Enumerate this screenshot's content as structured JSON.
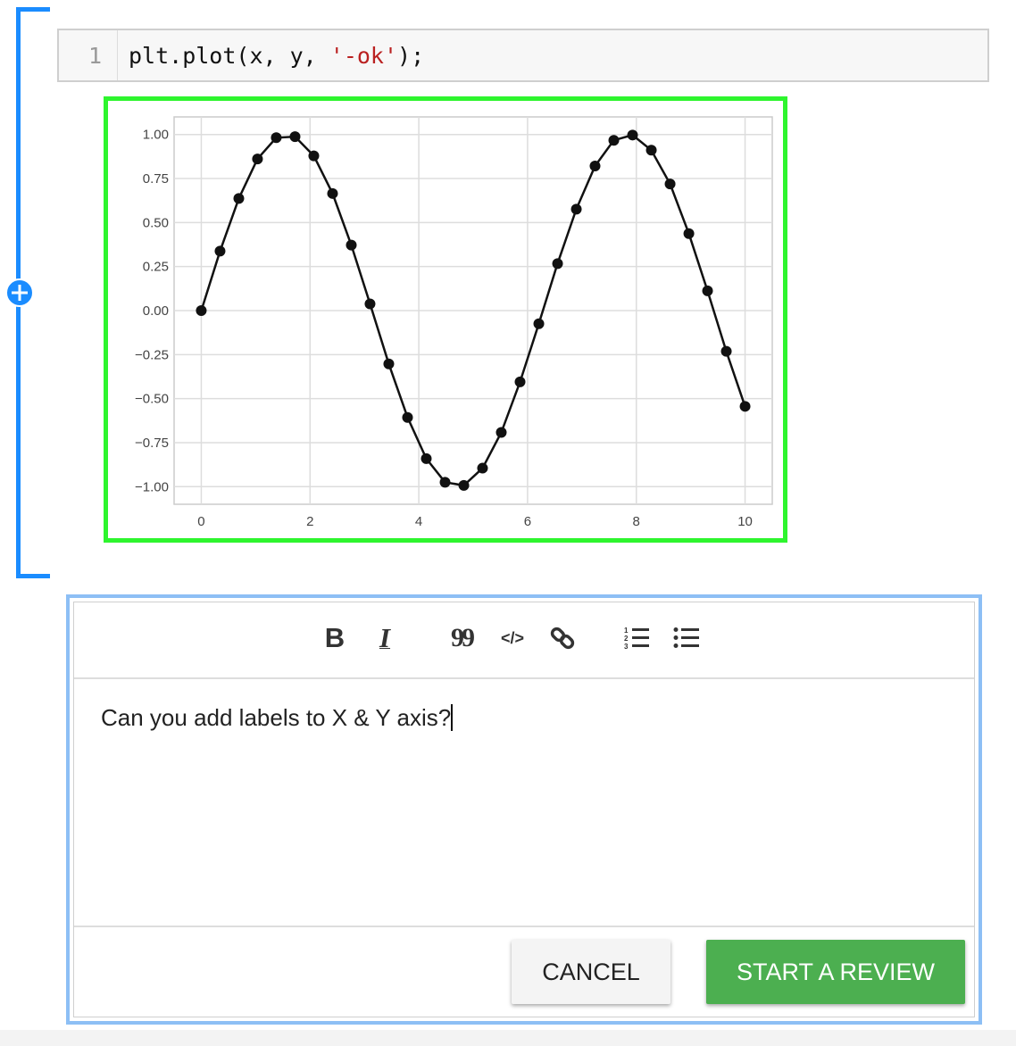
{
  "notebook": {
    "code_cell": {
      "line_number": "1",
      "code_prefix": "plt.plot(x, y, ",
      "code_string": "'-ok'",
      "code_suffix": ");"
    }
  },
  "chart_data": {
    "type": "line",
    "series": [
      {
        "x": [
          0,
          0.345,
          0.69,
          1.034,
          1.379,
          1.724,
          2.069,
          2.414,
          2.759,
          3.103,
          3.448,
          3.793,
          4.138,
          4.483,
          4.828,
          5.172,
          5.517,
          5.862,
          6.207,
          6.552,
          6.897,
          7.241,
          7.586,
          7.931,
          8.276,
          8.621,
          8.966,
          9.31,
          9.655,
          10
        ],
        "y": [
          0,
          0.338,
          0.637,
          0.861,
          0.982,
          0.988,
          0.879,
          0.665,
          0.372,
          0.038,
          -0.303,
          -0.607,
          -0.841,
          -0.975,
          -0.993,
          -0.895,
          -0.692,
          -0.405,
          -0.075,
          0.267,
          0.576,
          0.821,
          0.967,
          0.997,
          0.911,
          0.719,
          0.437,
          0.112,
          -0.231,
          -0.544
        ],
        "color": "#111111",
        "style": "-ok"
      }
    ],
    "xlim": [
      -0.5,
      10.5
    ],
    "ylim": [
      -1.1,
      1.1
    ],
    "xticks": [
      "0",
      "2",
      "4",
      "6",
      "8",
      "10"
    ],
    "yticks": [
      "1.00",
      "0.75",
      "0.50",
      "0.25",
      "0.00",
      "−0.25",
      "−0.50",
      "−0.75",
      "−1.00"
    ],
    "grid": true,
    "title": "",
    "xlabel": "",
    "ylabel": ""
  },
  "comment": {
    "toolbar": {
      "bold": "B",
      "italic": "I",
      "quote": "99",
      "code": "</>",
      "link": "link",
      "numbered_list": "numbered-list",
      "bullet_list": "bullet-list"
    },
    "text": "Can you add labels to X & Y axis?",
    "cancel_label": "CANCEL",
    "submit_label": "START A REVIEW"
  },
  "colors": {
    "accent": "#1a8cff",
    "chart_border": "#2ef52e",
    "panel_border": "#8dbff5",
    "submit": "#4caf50"
  }
}
